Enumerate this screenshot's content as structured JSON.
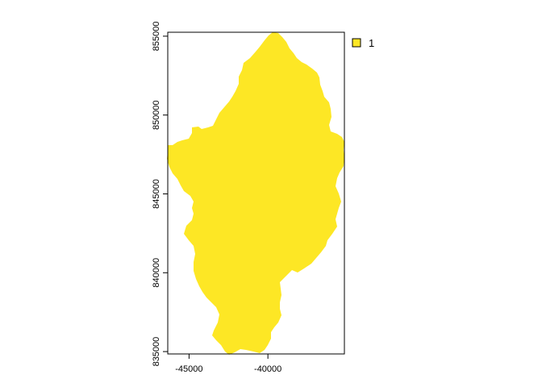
{
  "map": {
    "fill_color": "#FDE725",
    "legend_items": [
      {
        "label": "1",
        "color": "#FDE725"
      }
    ],
    "x_ticks": [
      {
        "value": -45000,
        "label": "-45000"
      },
      {
        "value": -40000,
        "label": "-40000"
      }
    ],
    "y_ticks": [
      {
        "value": 855000,
        "label": "855000"
      },
      {
        "value": 850000,
        "label": "850000"
      },
      {
        "value": 845000,
        "label": "845000"
      },
      {
        "value": 840000,
        "label": "840000"
      },
      {
        "value": 835000,
        "label": "835000"
      }
    ],
    "x_range": [
      -46350,
      -35150
    ],
    "y_range": [
      834850,
      855250
    ]
  }
}
